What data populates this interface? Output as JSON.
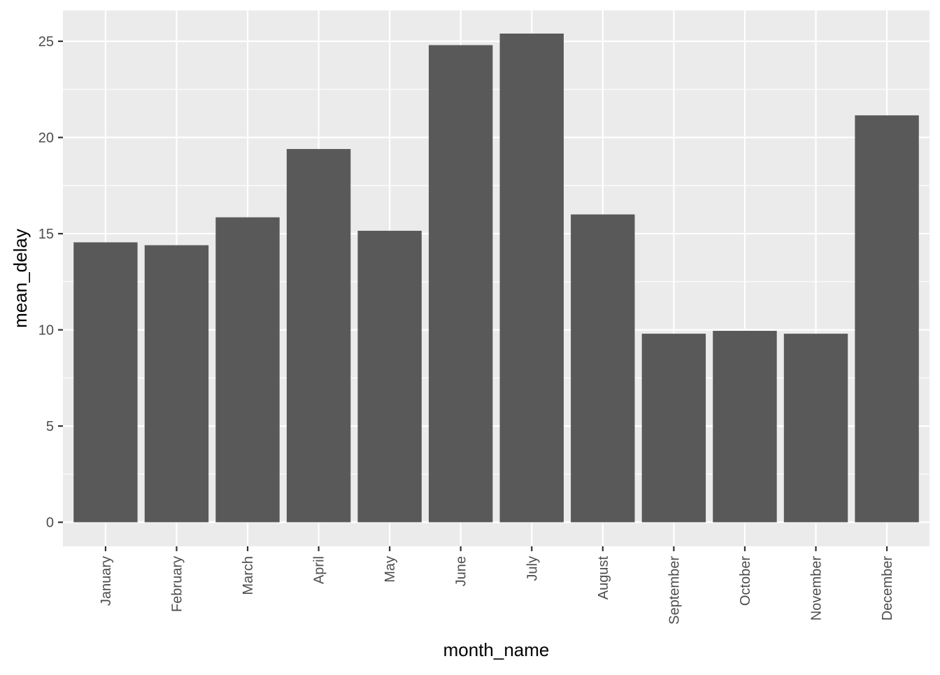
{
  "chart_data": {
    "type": "bar",
    "title": "",
    "xlabel": "month_name",
    "ylabel": "mean_delay",
    "categories": [
      "January",
      "February",
      "March",
      "April",
      "May",
      "June",
      "July",
      "August",
      "September",
      "October",
      "November",
      "December"
    ],
    "values": [
      14.55,
      14.4,
      15.85,
      19.4,
      15.15,
      24.8,
      25.4,
      16.0,
      9.8,
      9.95,
      9.8,
      21.15
    ],
    "ylim": [
      -1.25,
      26.6
    ],
    "yticks": [
      0,
      5,
      10,
      15,
      20,
      25
    ],
    "ytick_labels": [
      "0",
      "5",
      "10",
      "15",
      "20",
      "25"
    ],
    "grid": true,
    "legend": "none",
    "colors": {
      "panel_background": "#ebebeb",
      "grid_line": "#ffffff",
      "bar_fill": "#595959",
      "tick_color": "#333333",
      "tick_label": "#4d4d4d",
      "axis_title": "#000000"
    }
  }
}
